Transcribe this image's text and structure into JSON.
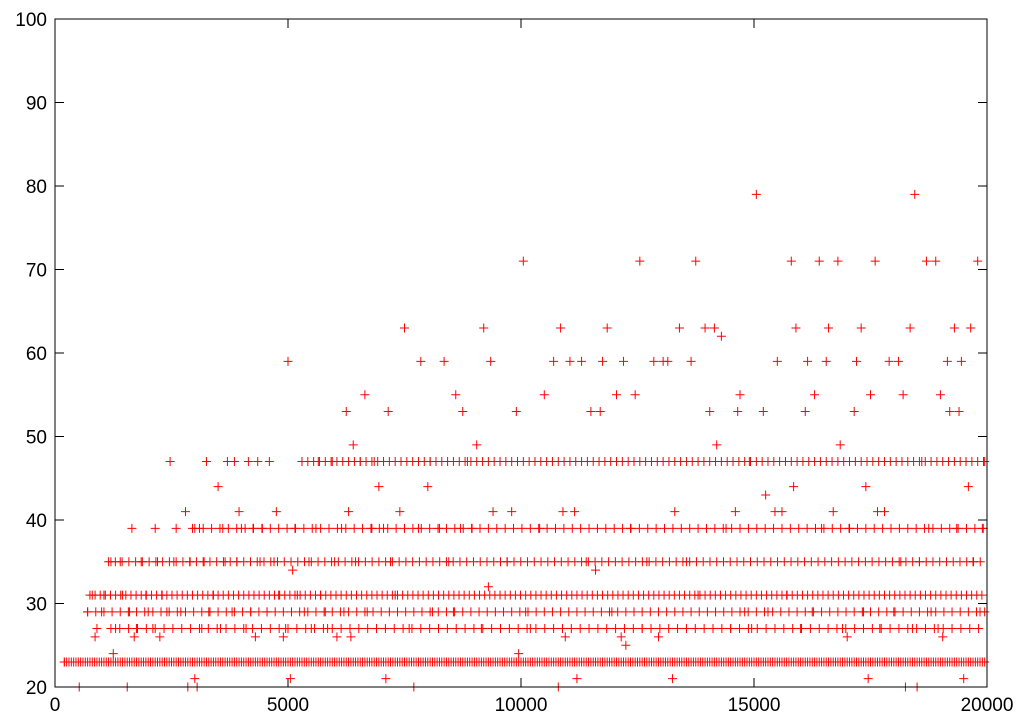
{
  "chart_data": {
    "type": "scatter",
    "title": "",
    "xlabel": "",
    "ylabel": "",
    "xlim": [
      0,
      20000
    ],
    "ylim": [
      20,
      100
    ],
    "xticks": [
      0,
      5000,
      10000,
      15000,
      20000
    ],
    "yticks": [
      20,
      30,
      40,
      50,
      60,
      70,
      80,
      90,
      100
    ],
    "xtick_labels": [
      "0",
      "5000",
      "10000",
      "15000",
      "20000"
    ],
    "ytick_labels": [
      "20",
      "30",
      "40",
      "50",
      "60",
      "70",
      "80",
      "90",
      "100"
    ],
    "grid": false,
    "legend": "none",
    "marker": "plus",
    "series": [
      {
        "color": "#ff0000",
        "points": [
          [
            200,
            23
          ],
          [
            520,
            20
          ],
          [
            700,
            29
          ],
          [
            800,
            31
          ],
          [
            860,
            26
          ],
          [
            900,
            27
          ],
          [
            1000,
            29
          ],
          [
            1050,
            31
          ],
          [
            1200,
            35
          ],
          [
            1250,
            24
          ],
          [
            1300,
            27
          ],
          [
            1400,
            35
          ],
          [
            1450,
            31
          ],
          [
            1550,
            20
          ],
          [
            1600,
            29
          ],
          [
            1650,
            39
          ],
          [
            1700,
            26
          ],
          [
            1750,
            27
          ],
          [
            1850,
            35
          ],
          [
            1950,
            31
          ],
          [
            2000,
            29
          ],
          [
            2100,
            27
          ],
          [
            2150,
            39
          ],
          [
            2200,
            35
          ],
          [
            2250,
            26
          ],
          [
            2300,
            31
          ],
          [
            2400,
            29
          ],
          [
            2470,
            47
          ],
          [
            2550,
            35
          ],
          [
            2600,
            39
          ],
          [
            2700,
            29
          ],
          [
            2800,
            41
          ],
          [
            2850,
            20
          ],
          [
            2900,
            35
          ],
          [
            2950,
            39
          ],
          [
            3000,
            21
          ],
          [
            3050,
            20
          ],
          [
            3100,
            39
          ],
          [
            3150,
            27
          ],
          [
            3200,
            35
          ],
          [
            3250,
            47
          ],
          [
            3300,
            29
          ],
          [
            3400,
            31
          ],
          [
            3500,
            44
          ],
          [
            3550,
            27
          ],
          [
            3600,
            39
          ],
          [
            3650,
            35
          ],
          [
            3700,
            47
          ],
          [
            3800,
            29
          ],
          [
            3850,
            47
          ],
          [
            3900,
            35
          ],
          [
            3950,
            41
          ],
          [
            4000,
            39
          ],
          [
            4100,
            27
          ],
          [
            4150,
            47
          ],
          [
            4200,
            29
          ],
          [
            4250,
            39
          ],
          [
            4300,
            26
          ],
          [
            4350,
            47
          ],
          [
            4400,
            35
          ],
          [
            4450,
            39
          ],
          [
            4550,
            29
          ],
          [
            4600,
            47
          ],
          [
            4700,
            35
          ],
          [
            4750,
            41
          ],
          [
            4800,
            31
          ],
          [
            4900,
            26
          ],
          [
            4950,
            27
          ],
          [
            5000,
            59
          ],
          [
            5050,
            21
          ],
          [
            5100,
            34
          ],
          [
            5150,
            39
          ],
          [
            5200,
            31
          ],
          [
            5300,
            47
          ],
          [
            5350,
            29
          ],
          [
            5450,
            35
          ],
          [
            5500,
            27
          ],
          [
            5600,
            39
          ],
          [
            5650,
            47
          ],
          [
            5700,
            31
          ],
          [
            5800,
            29
          ],
          [
            5850,
            27
          ],
          [
            5950,
            47
          ],
          [
            6000,
            35
          ],
          [
            6050,
            26
          ],
          [
            6150,
            39
          ],
          [
            6200,
            29
          ],
          [
            6250,
            53
          ],
          [
            6300,
            41
          ],
          [
            6350,
            26
          ],
          [
            6400,
            49
          ],
          [
            6450,
            35
          ],
          [
            6550,
            47
          ],
          [
            6650,
            55
          ],
          [
            6700,
            29
          ],
          [
            6800,
            39
          ],
          [
            6850,
            47
          ],
          [
            6950,
            44
          ],
          [
            7050,
            39
          ],
          [
            7100,
            21
          ],
          [
            7150,
            53
          ],
          [
            7200,
            35
          ],
          [
            7300,
            31
          ],
          [
            7400,
            41
          ],
          [
            7500,
            63
          ],
          [
            7600,
            27
          ],
          [
            7700,
            20
          ],
          [
            7800,
            39
          ],
          [
            7850,
            59
          ],
          [
            8000,
            44
          ],
          [
            8050,
            47
          ],
          [
            8100,
            29
          ],
          [
            8250,
            39
          ],
          [
            8350,
            59
          ],
          [
            8450,
            35
          ],
          [
            8550,
            29
          ],
          [
            8600,
            55
          ],
          [
            8700,
            39
          ],
          [
            8750,
            53
          ],
          [
            8850,
            47
          ],
          [
            8950,
            39
          ],
          [
            9050,
            49
          ],
          [
            9150,
            27
          ],
          [
            9200,
            63
          ],
          [
            9300,
            32
          ],
          [
            9350,
            59
          ],
          [
            9400,
            41
          ],
          [
            9550,
            47
          ],
          [
            9700,
            35
          ],
          [
            9800,
            41
          ],
          [
            9900,
            53
          ],
          [
            9950,
            24
          ],
          [
            10050,
            71
          ],
          [
            10100,
            29
          ],
          [
            10200,
            27
          ],
          [
            10300,
            47
          ],
          [
            10400,
            39
          ],
          [
            10500,
            55
          ],
          [
            10700,
            59
          ],
          [
            10800,
            20
          ],
          [
            10850,
            63
          ],
          [
            10900,
            41
          ],
          [
            10950,
            26
          ],
          [
            11050,
            59
          ],
          [
            11150,
            41
          ],
          [
            11200,
            21
          ],
          [
            11300,
            59
          ],
          [
            11400,
            35
          ],
          [
            11500,
            53
          ],
          [
            11600,
            34
          ],
          [
            11700,
            53
          ],
          [
            11750,
            59
          ],
          [
            11850,
            63
          ],
          [
            11950,
            29
          ],
          [
            12050,
            55
          ],
          [
            12150,
            26
          ],
          [
            12200,
            59
          ],
          [
            12250,
            25
          ],
          [
            12350,
            39
          ],
          [
            12450,
            55
          ],
          [
            12550,
            71
          ],
          [
            12600,
            27
          ],
          [
            12700,
            35
          ],
          [
            12850,
            59
          ],
          [
            12950,
            26
          ],
          [
            13050,
            59
          ],
          [
            13150,
            59
          ],
          [
            13250,
            21
          ],
          [
            13300,
            41
          ],
          [
            13400,
            63
          ],
          [
            13550,
            35
          ],
          [
            13650,
            59
          ],
          [
            13750,
            71
          ],
          [
            13800,
            31
          ],
          [
            13950,
            63
          ],
          [
            14050,
            53
          ],
          [
            14150,
            63
          ],
          [
            14200,
            49
          ],
          [
            14300,
            62
          ],
          [
            14400,
            39
          ],
          [
            14500,
            27
          ],
          [
            14600,
            41
          ],
          [
            14650,
            53
          ],
          [
            14700,
            55
          ],
          [
            14800,
            29
          ],
          [
            14900,
            47
          ],
          [
            14950,
            27
          ],
          [
            15050,
            79
          ],
          [
            15200,
            53
          ],
          [
            15250,
            43
          ],
          [
            15300,
            29
          ],
          [
            15450,
            41
          ],
          [
            15500,
            59
          ],
          [
            15600,
            41
          ],
          [
            15700,
            31
          ],
          [
            15800,
            71
          ],
          [
            15850,
            44
          ],
          [
            15900,
            63
          ],
          [
            16000,
            27
          ],
          [
            16100,
            53
          ],
          [
            16150,
            59
          ],
          [
            16250,
            29
          ],
          [
            16300,
            55
          ],
          [
            16400,
            71
          ],
          [
            16450,
            39
          ],
          [
            16550,
            59
          ],
          [
            16600,
            63
          ],
          [
            16700,
            41
          ],
          [
            16800,
            71
          ],
          [
            16850,
            49
          ],
          [
            16900,
            27
          ],
          [
            17000,
            26
          ],
          [
            17050,
            39
          ],
          [
            17150,
            53
          ],
          [
            17200,
            59
          ],
          [
            17300,
            63
          ],
          [
            17350,
            29
          ],
          [
            17400,
            44
          ],
          [
            17450,
            21
          ],
          [
            17500,
            55
          ],
          [
            17600,
            71
          ],
          [
            17650,
            41
          ],
          [
            17700,
            27
          ],
          [
            17800,
            41
          ],
          [
            17900,
            59
          ],
          [
            18000,
            29
          ],
          [
            18100,
            59
          ],
          [
            18150,
            35
          ],
          [
            18200,
            55
          ],
          [
            18250,
            20
          ],
          [
            18350,
            63
          ],
          [
            18400,
            27
          ],
          [
            18450,
            79
          ],
          [
            18500,
            20
          ],
          [
            18550,
            35
          ],
          [
            18600,
            47
          ],
          [
            18700,
            71
          ],
          [
            18750,
            39
          ],
          [
            18800,
            29
          ],
          [
            18900,
            71
          ],
          [
            18950,
            27
          ],
          [
            19000,
            55
          ],
          [
            19050,
            26
          ],
          [
            19150,
            59
          ],
          [
            19200,
            53
          ],
          [
            19300,
            63
          ],
          [
            19350,
            39
          ],
          [
            19400,
            53
          ],
          [
            19450,
            59
          ],
          [
            19500,
            21
          ],
          [
            19550,
            47
          ],
          [
            19600,
            44
          ],
          [
            19650,
            63
          ],
          [
            19700,
            35
          ],
          [
            19800,
            71
          ],
          [
            19850,
            29
          ],
          [
            19900,
            39
          ],
          [
            19950,
            47
          ]
        ]
      }
    ],
    "dense_rows": [
      {
        "y": 23,
        "x_range": [
          200,
          19950
        ],
        "step": 50
      },
      {
        "y": 31,
        "x_range": [
          750,
          19950
        ],
        "step": 110
      },
      {
        "y": 35,
        "x_range": [
          1150,
          19950
        ],
        "step": 145
      },
      {
        "y": 29,
        "x_range": [
          700,
          19950
        ],
        "step": 175
      },
      {
        "y": 27,
        "x_range": [
          1200,
          19950
        ],
        "step": 190
      },
      {
        "y": 39,
        "x_range": [
          3000,
          19950
        ],
        "step": 180
      },
      {
        "y": 47,
        "x_range": [
          5300,
          19950
        ],
        "step": 125
      }
    ]
  }
}
